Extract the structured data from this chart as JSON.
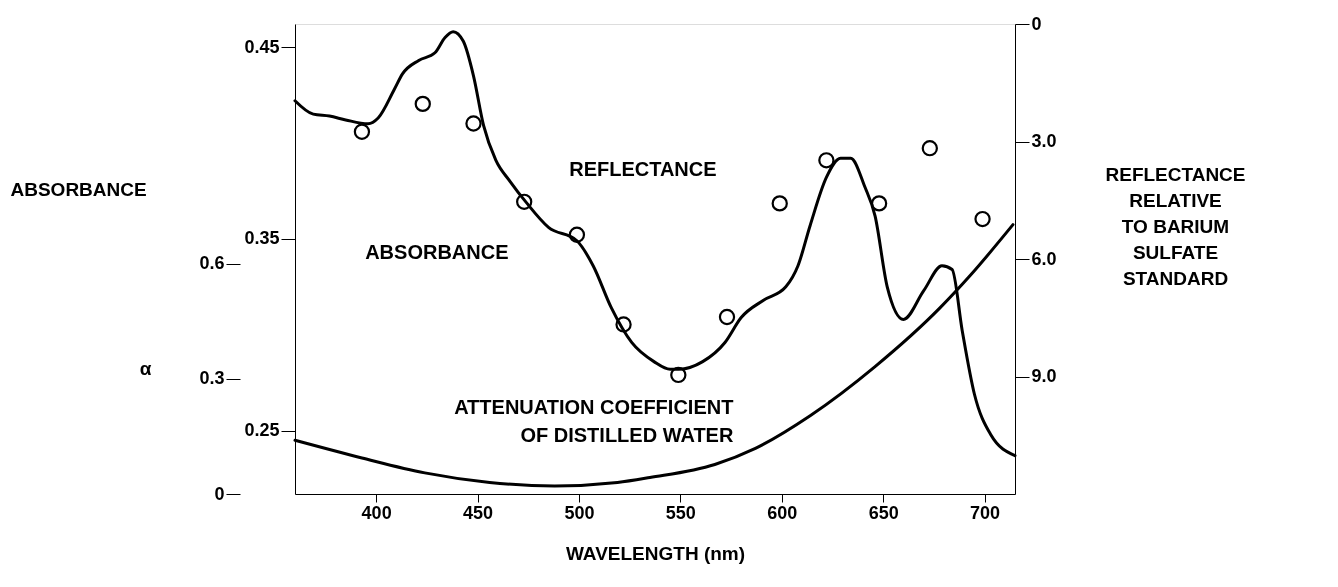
{
  "chart_data": {
    "type": "line",
    "xlabel": "WAVELENGTH (nm)",
    "ylabel": "ABSORBANCE",
    "y2label": "REFLECTANCE\nRELATIVE\nTO BARIUM\nSULFATE\nSTANDARD",
    "y3label": "α",
    "xlim": [
      360,
      715
    ],
    "xticks": [
      400,
      450,
      500,
      550,
      600,
      650,
      700
    ],
    "ylim": [
      0.217,
      0.462
    ],
    "yticks": [
      0.25,
      0.35,
      0.45
    ],
    "y2lim": [
      12,
      0
    ],
    "y2ticks": [
      0,
      {
        "value": 3,
        "label": "3.0"
      },
      {
        "value": 6,
        "label": "6.0"
      },
      {
        "value": 9,
        "label": "9.0"
      }
    ],
    "y3lim": [
      0,
      1.225
    ],
    "y3ticks": [
      0,
      0.3,
      0.6
    ],
    "grid": false,
    "series": [
      {
        "name": "ABSORBANCE",
        "axis": "y",
        "color": "#000000",
        "x": [
          360,
          369,
          377,
          385,
          396,
          401,
          409,
          413,
          421,
          429,
          434,
          438,
          443,
          448,
          453,
          459,
          466,
          474,
          485,
          499,
          507,
          516,
          526,
          537,
          545,
          549,
          561,
          572,
          580,
          591,
          602,
          608,
          614,
          622,
          629,
          634,
          641,
          646,
          652,
          660,
          670,
          679,
          684,
          689,
          695,
          703,
          715
        ],
        "values": [
          0.422,
          0.415,
          0.414,
          0.412,
          0.41,
          0.413,
          0.428,
          0.436,
          0.443,
          0.447,
          0.455,
          0.458,
          0.453,
          0.435,
          0.409,
          0.391,
          0.38,
          0.369,
          0.356,
          0.349,
          0.336,
          0.314,
          0.296,
          0.286,
          0.282,
          0.282,
          0.286,
          0.296,
          0.309,
          0.318,
          0.325,
          0.336,
          0.357,
          0.382,
          0.392,
          0.392,
          0.377,
          0.362,
          0.325,
          0.308,
          0.323,
          0.336,
          0.334,
          0.302,
          0.269,
          0.248,
          0.237
        ]
      },
      {
        "name": "REFLECTANCE",
        "type": "scatter",
        "marker": "circle",
        "axis": "y2",
        "color": "#000000",
        "x": [
          393,
          423,
          448,
          473,
          499,
          522,
          549,
          573,
          599,
          622,
          648,
          673,
          699
        ],
        "values": [
          2.75,
          2.04,
          2.54,
          4.54,
          5.38,
          7.67,
          8.96,
          7.48,
          4.58,
          3.48,
          4.58,
          3.17,
          4.98
        ]
      },
      {
        "name": "ATTENUATION COEFFICIENT\nOF DISTILLED WATER",
        "type": "line",
        "axis": "y3",
        "color": "#000000",
        "x": [
          360,
          393,
          424,
          456,
          488,
          519,
          535,
          567,
          587,
          614,
          646,
          678,
          693,
          714
        ],
        "values": [
          0.14,
          0.094,
          0.055,
          0.03,
          0.021,
          0.03,
          0.043,
          0.077,
          0.119,
          0.204,
          0.332,
          0.485,
          0.57,
          0.702
        ]
      }
    ]
  }
}
